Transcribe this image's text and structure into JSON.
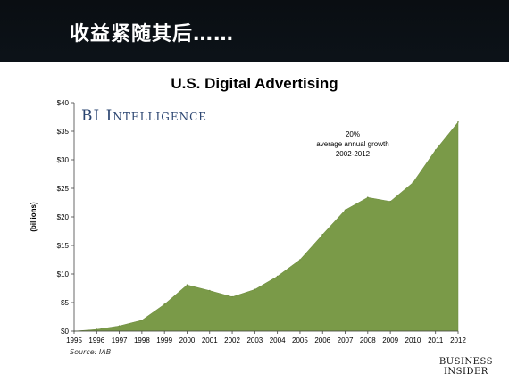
{
  "slide_title": "收益紧随其后……",
  "source": "Source: IAB",
  "watermark": "BI Intelligence",
  "logo": {
    "line1": "BUSINESS",
    "line2": "INSIDER"
  },
  "annotation": {
    "line1": "20%",
    "line2": "average annual growth",
    "line3": "2002-2012"
  },
  "colors": {
    "area": "#7a9a48",
    "area_stroke": "#6c8a3e",
    "watermark": "#2a4470"
  },
  "chart_data": {
    "type": "area",
    "title": "U.S. Digital Advertising",
    "ylabel": "(billions)",
    "xlabel": "",
    "x": [
      "1995",
      "1996",
      "1997",
      "1998",
      "1999",
      "2000",
      "2001",
      "2002",
      "2003",
      "2004",
      "2005",
      "2006",
      "2007",
      "2008",
      "2009",
      "2010",
      "2011",
      "2012"
    ],
    "values": [
      0.0,
      0.3,
      0.9,
      1.9,
      4.7,
      8.1,
      7.1,
      6.0,
      7.3,
      9.6,
      12.5,
      16.9,
      21.2,
      23.4,
      22.7,
      26.0,
      31.7,
      36.6
    ],
    "ylim": [
      0,
      40
    ],
    "yticks": [
      "$0",
      "$5",
      "$10",
      "$15",
      "$20",
      "$25",
      "$30",
      "$35",
      "$40"
    ],
    "grid": false
  }
}
